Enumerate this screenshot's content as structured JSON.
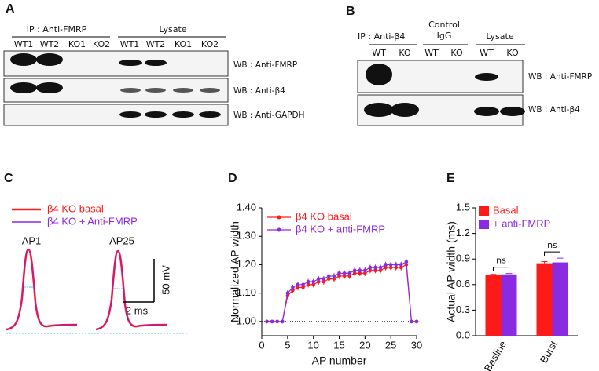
{
  "panels": {
    "A": {
      "label": "A",
      "ip_header": "IP : Anti-FMRP",
      "lysate_header": "Lysate",
      "lanes": [
        "WT1",
        "WT2",
        "KO1",
        "KO2",
        "WT1",
        "WT2",
        "KO1",
        "KO2"
      ],
      "blots": [
        "WB : Anti-FMRP",
        "WB : Anti-β4",
        "WB : Anti-GAPDH"
      ]
    },
    "B": {
      "label": "B",
      "ip_header": "IP : Anti-β4",
      "control_header": [
        "Control",
        "IgG"
      ],
      "lysate_header": "Lysate",
      "lanes": [
        "WT",
        "KO",
        "WT",
        "KO",
        "WT",
        "KO"
      ],
      "blots": [
        "WB : Anti-FMRP",
        "WB : Anti-β4"
      ]
    },
    "C": {
      "label": "C",
      "legend": [
        "β4 KO basal",
        "β4 KO + Anti-FMRP"
      ],
      "traces": [
        "AP1",
        "AP25"
      ],
      "scale_voltage": "50 mV",
      "scale_time": "2 ms"
    },
    "D": {
      "label": "D"
    },
    "E": {
      "label": "E"
    }
  },
  "chart_data": [
    {
      "type": "line",
      "xlabel": "AP number",
      "ylabel": "Normalized AP width",
      "x": [
        1,
        2,
        3,
        4,
        5,
        6,
        7,
        8,
        9,
        10,
        11,
        12,
        13,
        14,
        15,
        16,
        17,
        18,
        19,
        20,
        21,
        22,
        23,
        24,
        25,
        26,
        27,
        28,
        29,
        30
      ],
      "series": [
        {
          "name": "β4 KO basal",
          "color": "#ff1a1a",
          "values": [
            1.0,
            1.0,
            1.0,
            1.0,
            1.09,
            1.11,
            1.12,
            1.12,
            1.13,
            1.13,
            1.14,
            1.14,
            1.15,
            1.15,
            1.16,
            1.16,
            1.16,
            1.17,
            1.17,
            1.17,
            1.18,
            1.18,
            1.18,
            1.19,
            1.19,
            1.19,
            1.19,
            1.2,
            1.0,
            1.0
          ],
          "errors": [
            0,
            0,
            0,
            0,
            0.01,
            0.01,
            0.01,
            0.01,
            0.01,
            0.01,
            0.01,
            0.01,
            0.01,
            0.01,
            0.01,
            0.01,
            0.01,
            0.01,
            0.01,
            0.01,
            0.01,
            0.01,
            0.01,
            0.01,
            0.01,
            0.01,
            0.01,
            0.01,
            0,
            0
          ]
        },
        {
          "name": "β4 KO + anti-FMRP",
          "color": "#8a2be2",
          "values": [
            1.0,
            1.0,
            1.0,
            1.0,
            1.1,
            1.12,
            1.13,
            1.13,
            1.14,
            1.14,
            1.15,
            1.15,
            1.16,
            1.16,
            1.17,
            1.17,
            1.17,
            1.18,
            1.18,
            1.18,
            1.19,
            1.19,
            1.19,
            1.2,
            1.2,
            1.2,
            1.2,
            1.21,
            1.0,
            1.0
          ],
          "errors": [
            0,
            0,
            0,
            0,
            0.01,
            0.01,
            0.01,
            0.01,
            0.01,
            0.01,
            0.01,
            0.01,
            0.01,
            0.01,
            0.01,
            0.01,
            0.01,
            0.01,
            0.01,
            0.01,
            0.01,
            0.01,
            0.01,
            0.01,
            0.01,
            0.01,
            0.01,
            0.01,
            0,
            0
          ]
        }
      ],
      "hline": 1.0,
      "xlim": [
        0,
        30
      ],
      "xticks": [
        0,
        5,
        10,
        15,
        20,
        25,
        30
      ],
      "ylim": [
        0.95,
        1.4
      ],
      "yticks": [
        {
          "value": 1.0,
          "label": "1.00"
        },
        {
          "value": 1.1,
          "label": "1.10"
        },
        {
          "value": 1.2,
          "label": "1.20"
        },
        {
          "value": 1.3,
          "label": "1.30"
        },
        {
          "value": 1.4,
          "label": "1.40"
        }
      ]
    },
    {
      "type": "bar",
      "ylabel": "Actual AP width (ms)",
      "categories": [
        "Basline",
        "Burst"
      ],
      "series": [
        {
          "name": "Basal",
          "color": "#ff1a1a",
          "values": [
            0.71,
            0.85
          ],
          "errors": [
            0.01,
            0.02
          ]
        },
        {
          "name": "+ anti-FMRP",
          "color": "#8a2be2",
          "values": [
            0.72,
            0.86
          ],
          "errors": [
            0.01,
            0.05
          ]
        }
      ],
      "annotations": [
        "ns",
        "ns"
      ],
      "ylim": [
        0,
        1.5
      ],
      "yticks": [
        {
          "value": 0,
          "label": "0.0"
        },
        0.3,
        0.6,
        0.9,
        1.2,
        1.5
      ]
    }
  ]
}
